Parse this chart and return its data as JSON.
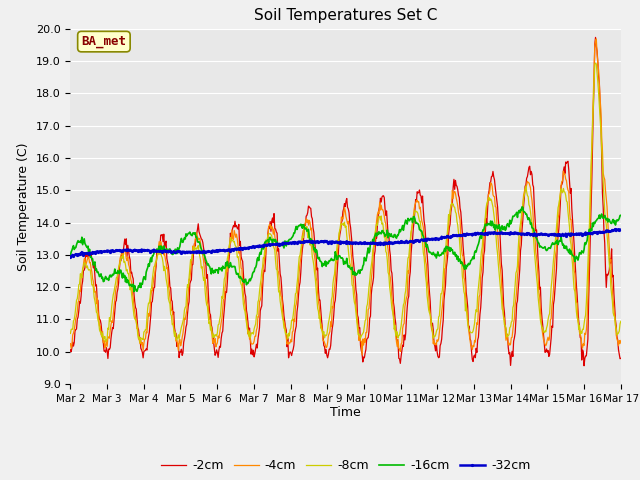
{
  "title": "Soil Temperatures Set C",
  "xlabel": "Time",
  "ylabel": "Soil Temperature (C)",
  "ylim": [
    9.0,
    20.0
  ],
  "yticks": [
    9.0,
    10.0,
    11.0,
    12.0,
    13.0,
    14.0,
    15.0,
    16.0,
    17.0,
    18.0,
    19.0,
    20.0
  ],
  "xtick_labels": [
    "Mar 2",
    "Mar 3",
    "Mar 4",
    "Mar 5",
    "Mar 6",
    "Mar 7",
    "Mar 8",
    "Mar 9",
    "Mar 10",
    "Mar 11",
    "Mar 12",
    "Mar 13",
    "Mar 14",
    "Mar 15",
    "Mar 16",
    "Mar 17"
  ],
  "colors": {
    "-2cm": "#dd0000",
    "-4cm": "#ff8800",
    "-8cm": "#cccc00",
    "-16cm": "#00bb00",
    "-32cm": "#0000cc"
  },
  "annotation_text": "BA_met",
  "annotation_color": "#880000",
  "annotation_bg": "#ffffcc",
  "fig_bg": "#f0f0f0",
  "plot_bg": "#e8e8e8",
  "grid_color": "#ffffff"
}
